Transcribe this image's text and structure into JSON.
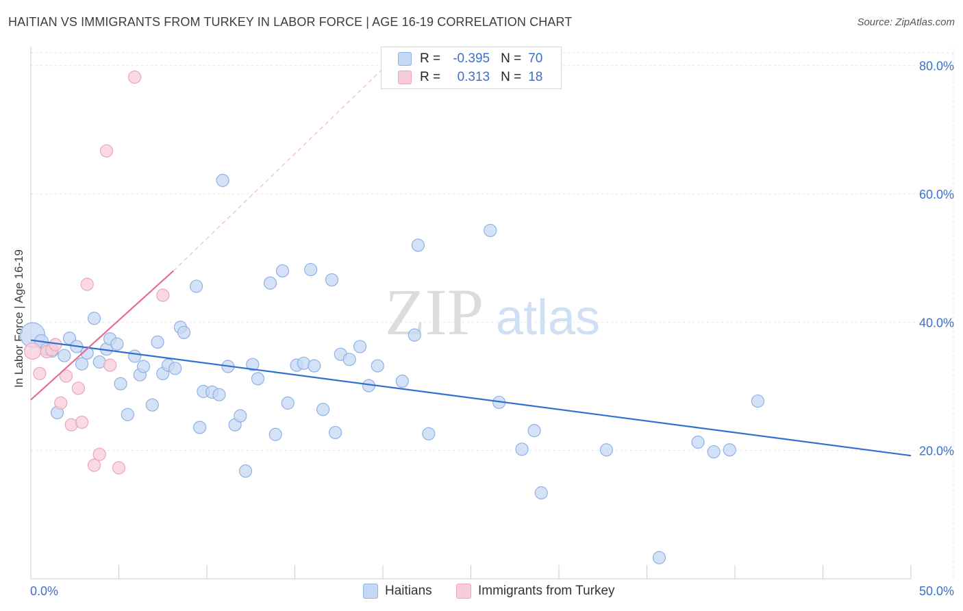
{
  "title": "HAITIAN VS IMMIGRANTS FROM TURKEY IN LABOR FORCE | AGE 16-19 CORRELATION CHART",
  "source": "Source: ZipAtlas.com",
  "watermark": {
    "zip": "ZIP",
    "atlas": "atlas"
  },
  "legend": {
    "rows": [
      {
        "r_label": "R =",
        "r_value": "-0.395",
        "n_label": "N =",
        "n_value": "70"
      },
      {
        "r_label": "R =",
        "r_value": "0.313",
        "n_label": "N =",
        "n_value": "18"
      }
    ]
  },
  "chart_data": {
    "type": "scatter",
    "title": "HAITIAN VS IMMIGRANTS FROM TURKEY IN LABOR FORCE | AGE 16-19 CORRELATION CHART",
    "xlabel": "",
    "ylabel": "In Labor Force | Age 16-19",
    "xlim": [
      0,
      50
    ],
    "ylim": [
      0,
      82
    ],
    "x_tick_labels": [
      {
        "value": 0,
        "label": "0.0%"
      },
      {
        "value": 50,
        "label": "50.0%"
      }
    ],
    "y_tick_labels": [
      {
        "value": 20,
        "label": "20.0%"
      },
      {
        "value": 40,
        "label": "40.0%"
      },
      {
        "value": 60,
        "label": "60.0%"
      },
      {
        "value": 80,
        "label": "80.0%"
      }
    ],
    "grid": true,
    "legend_position": "bottom",
    "series": [
      {
        "name": "Haitians",
        "color": "#8fb1e3",
        "fill": "#c5d8f4",
        "line_color": "#2f6fd0",
        "trend": {
          "x0": 0.0,
          "y0": 37.2,
          "x1": 50.0,
          "y1": 19.2
        },
        "points": [
          [
            0.1,
            38.0,
            18
          ],
          [
            0.6,
            37.0,
            10
          ],
          [
            0.9,
            35.8,
            9
          ],
          [
            1.2,
            35.5,
            9
          ],
          [
            1.5,
            25.9,
            9
          ],
          [
            1.9,
            34.8,
            9
          ],
          [
            2.2,
            37.5,
            9
          ],
          [
            2.6,
            36.2,
            9
          ],
          [
            2.9,
            33.5,
            9
          ],
          [
            3.2,
            35.2,
            9
          ],
          [
            3.6,
            40.6,
            9
          ],
          [
            3.9,
            33.8,
            9
          ],
          [
            4.3,
            35.8,
            9
          ],
          [
            4.5,
            37.4,
            9
          ],
          [
            4.9,
            36.6,
            9
          ],
          [
            5.1,
            30.4,
            9
          ],
          [
            5.5,
            25.6,
            9
          ],
          [
            5.9,
            34.7,
            9
          ],
          [
            6.2,
            31.8,
            9
          ],
          [
            6.4,
            33.1,
            9
          ],
          [
            6.9,
            27.1,
            9
          ],
          [
            7.2,
            36.9,
            9
          ],
          [
            7.5,
            32.0,
            9
          ],
          [
            7.8,
            33.3,
            9
          ],
          [
            8.2,
            32.8,
            9
          ],
          [
            8.5,
            39.2,
            9
          ],
          [
            8.7,
            38.4,
            9
          ],
          [
            9.4,
            45.6,
            9
          ],
          [
            9.6,
            23.6,
            9
          ],
          [
            9.8,
            29.2,
            9
          ],
          [
            10.3,
            29.1,
            9
          ],
          [
            10.7,
            28.7,
            9
          ],
          [
            10.9,
            62.1,
            9
          ],
          [
            11.2,
            33.1,
            9
          ],
          [
            11.6,
            24.0,
            9
          ],
          [
            11.9,
            25.4,
            9
          ],
          [
            12.2,
            16.8,
            9
          ],
          [
            12.6,
            33.4,
            9
          ],
          [
            12.9,
            31.2,
            9
          ],
          [
            13.6,
            46.1,
            9
          ],
          [
            13.9,
            22.5,
            9
          ],
          [
            14.3,
            48.0,
            9
          ],
          [
            14.6,
            27.4,
            9
          ],
          [
            15.1,
            33.3,
            9
          ],
          [
            15.5,
            33.6,
            9
          ],
          [
            15.9,
            48.2,
            9
          ],
          [
            16.1,
            33.2,
            9
          ],
          [
            16.6,
            26.4,
            9
          ],
          [
            17.1,
            46.6,
            9
          ],
          [
            17.3,
            22.8,
            9
          ],
          [
            17.6,
            35.0,
            9
          ],
          [
            18.1,
            34.2,
            9
          ],
          [
            18.7,
            36.2,
            9
          ],
          [
            19.2,
            30.1,
            9
          ],
          [
            19.7,
            33.2,
            9
          ],
          [
            21.1,
            30.8,
            9
          ],
          [
            21.8,
            38.0,
            9
          ],
          [
            22.0,
            52.0,
            9
          ],
          [
            22.6,
            22.6,
            9
          ],
          [
            26.1,
            54.3,
            9
          ],
          [
            26.6,
            27.5,
            9
          ],
          [
            27.9,
            20.2,
            9
          ],
          [
            28.6,
            23.1,
            9
          ],
          [
            29.0,
            13.4,
            9
          ],
          [
            32.7,
            20.1,
            9
          ],
          [
            35.7,
            3.3,
            9
          ],
          [
            37.9,
            21.3,
            9
          ],
          [
            38.8,
            19.8,
            9
          ],
          [
            39.7,
            20.1,
            9
          ],
          [
            41.3,
            27.7,
            9
          ]
        ]
      },
      {
        "name": "Immigrants from Turkey",
        "color": "#eca4bb",
        "fill": "#f7cdd9",
        "line_color": "#e46e93",
        "trend": {
          "x0": 0.0,
          "y0": 27.9,
          "x1": 8.1,
          "y1": 48.0
        },
        "trend_extension": {
          "x0": 8.1,
          "y0": 48.0,
          "x1": 20.0,
          "y1": 79.5
        },
        "points": [
          [
            0.1,
            35.5,
            12
          ],
          [
            0.5,
            32.0,
            9
          ],
          [
            0.9,
            35.4,
            9
          ],
          [
            1.2,
            35.7,
            9
          ],
          [
            1.4,
            36.5,
            9
          ],
          [
            1.7,
            27.4,
            9
          ],
          [
            2.0,
            31.6,
            9
          ],
          [
            2.3,
            24.0,
            9
          ],
          [
            2.7,
            29.7,
            9
          ],
          [
            2.9,
            24.4,
            9
          ],
          [
            3.2,
            45.9,
            9
          ],
          [
            3.6,
            17.7,
            9
          ],
          [
            3.9,
            19.4,
            9
          ],
          [
            4.3,
            66.7,
            9
          ],
          [
            4.5,
            33.3,
            9
          ],
          [
            5.0,
            17.3,
            9
          ],
          [
            5.9,
            78.2,
            9
          ],
          [
            7.5,
            44.2,
            9
          ]
        ]
      }
    ]
  }
}
